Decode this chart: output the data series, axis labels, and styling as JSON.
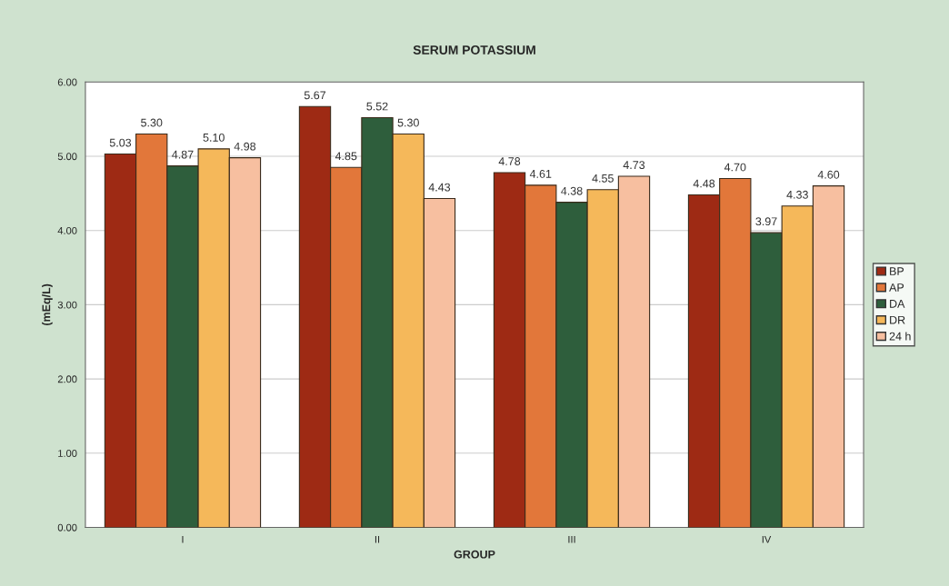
{
  "chart_data": {
    "type": "bar",
    "title": "SERUM POTASSIUM",
    "xlabel": "GROUP",
    "ylabel": "(mEq/L)",
    "categories": [
      "I",
      "II",
      "III",
      "IV"
    ],
    "series": [
      {
        "name": "BP",
        "color": "#9e2a14",
        "values": [
          5.03,
          5.67,
          4.78,
          4.48
        ],
        "value_labels": [
          "5.03",
          "5.67",
          "4.78",
          "4.48"
        ]
      },
      {
        "name": "AP",
        "color": "#e2773a",
        "values": [
          5.3,
          4.85,
          4.61,
          4.7
        ],
        "value_labels": [
          "5.30",
          "4.85",
          "4.61",
          "4.70"
        ]
      },
      {
        "name": "DA",
        "color": "#2e5e3c",
        "values": [
          4.87,
          5.52,
          4.38,
          3.97
        ],
        "value_labels": [
          "4.87",
          "5.52",
          "4.38",
          "3.97"
        ]
      },
      {
        "name": "DR",
        "color": "#f5b85a",
        "values": [
          5.1,
          5.3,
          4.55,
          4.33
        ],
        "value_labels": [
          "5.10",
          "5.30",
          "4.55",
          "4.33"
        ]
      },
      {
        "name": "24 h",
        "color": "#f7bfa0",
        "values": [
          4.98,
          4.43,
          4.73,
          4.6
        ],
        "value_labels": [
          "4.98",
          "4.43",
          "4.73",
          "4.60"
        ]
      }
    ],
    "ylim": [
      0,
      6
    ],
    "yticks": [
      {
        "value": 0,
        "label": "0.00"
      },
      {
        "value": 1,
        "label": "1.00"
      },
      {
        "value": 2,
        "label": "2.00"
      },
      {
        "value": 3,
        "label": "3.00"
      },
      {
        "value": 4,
        "label": "4.00"
      },
      {
        "value": 5,
        "label": "5.00"
      },
      {
        "value": 6,
        "label": "6.00"
      }
    ],
    "grid": "y",
    "legend": "right"
  }
}
